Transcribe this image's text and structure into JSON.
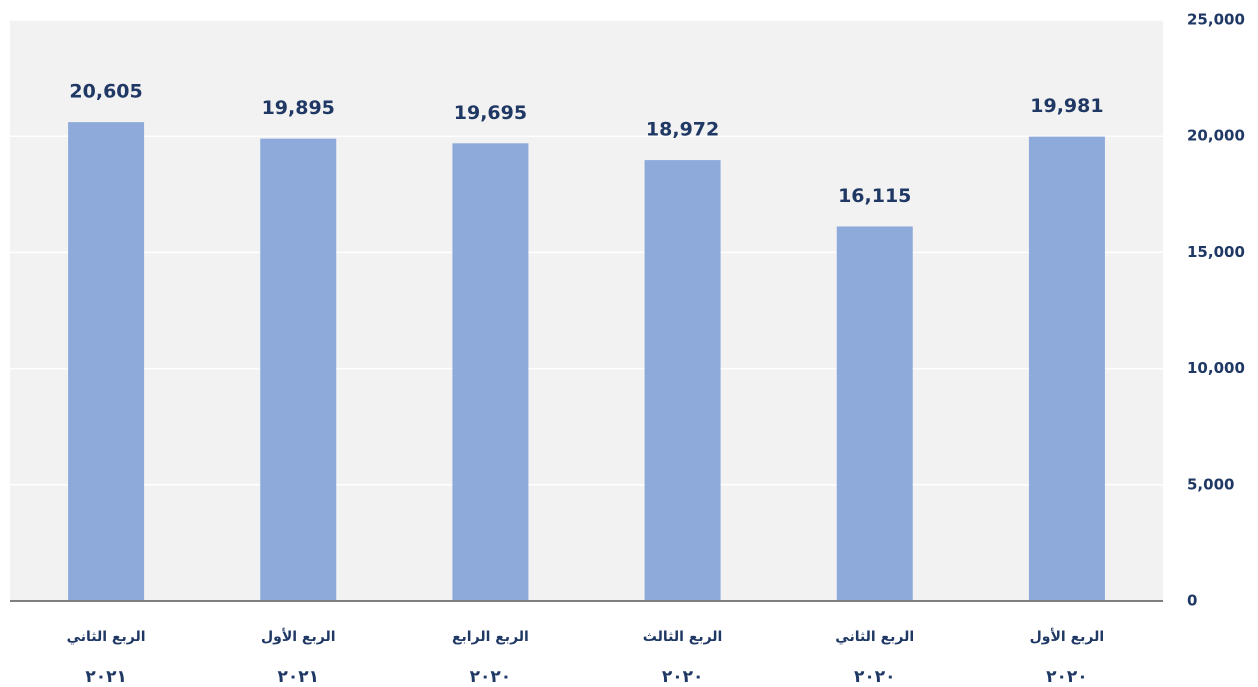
{
  "chart_data": {
    "type": "bar",
    "categories": [
      "الربع الثاني",
      "الربع الأول",
      "الربع الرابع",
      "الربع الثالث",
      "الربع الثاني",
      "الربع الأول"
    ],
    "category_years": [
      "٢٠٢١",
      "٢٠٢١",
      "٢٠٢٠",
      "٢٠٢٠",
      "٢٠٢٠",
      "٢٠٢٠"
    ],
    "values": [
      20605,
      19895,
      19695,
      18972,
      16115,
      19981
    ],
    "value_labels": [
      "20,605",
      "19,895",
      "19,695",
      "18,972",
      "16,115",
      "19,981"
    ],
    "color": "#8eaadb",
    "ylim": [
      0,
      25000
    ],
    "yticks": [
      0,
      {
        "value": 5000,
        "label": "5,000"
      },
      {
        "value": 10000,
        "label": "10,000"
      },
      {
        "value": 15000,
        "label": "15,000"
      },
      {
        "value": 20000,
        "label": "20,000"
      },
      {
        "value": 25000,
        "label": "25,000"
      }
    ],
    "grid": true
  }
}
